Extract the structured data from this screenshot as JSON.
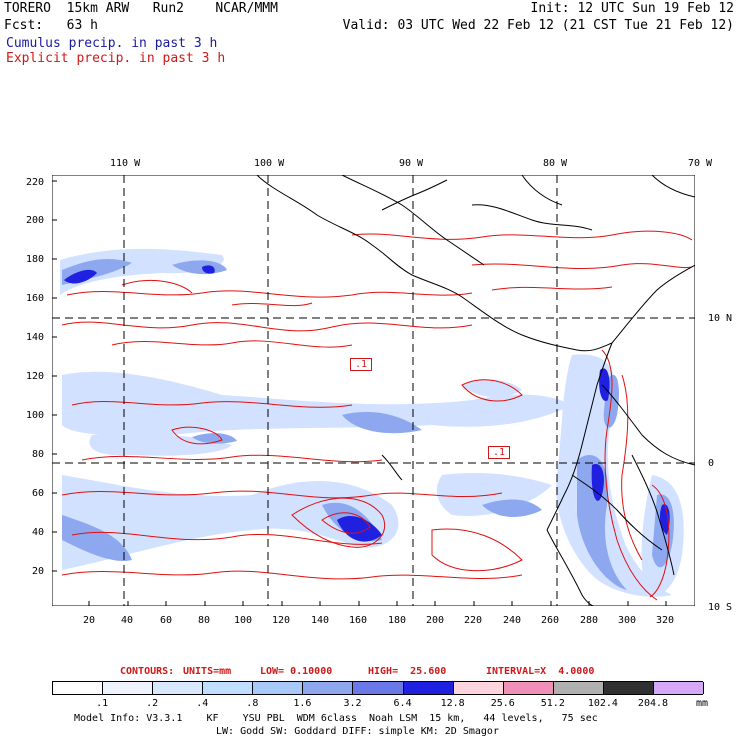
{
  "header": {
    "line1_left": "TORERO  15km ARW   Run2    NCAR/MMM",
    "line1_right": "Init: 12 UTC Sun 19 Feb 12",
    "line2_left": "Fcst:   63 h",
    "line2_right": "Valid: 03 UTC Wed 22 Feb 12 (21 CST Tue 21 Feb 12)",
    "cumulus": "Cumulus precip. in past 3 h",
    "explicit": "Explicit precip. in past 3 h"
  },
  "map": {
    "top_lon_labels": [
      "110 W",
      "100 W",
      "90 W",
      "80 W",
      "70 W"
    ],
    "right_lat_labels": [
      "10 N",
      "0",
      "10 S"
    ],
    "left_y_labels": [
      "220",
      "200",
      "180",
      "160",
      "140",
      "120",
      "100",
      "80",
      "60",
      "40",
      "20"
    ],
    "bottom_x_labels": [
      "20",
      "40",
      "60",
      "80",
      "100",
      "120",
      "140",
      "160",
      "180",
      "200",
      "220",
      "240",
      "260",
      "280",
      "300",
      "320"
    ],
    "contour_box_labels": [
      ".1",
      ".1"
    ],
    "colors": {
      "coast": "#000000",
      "contour": "#e01010",
      "precip_light": "#cfe0ff",
      "precip_mid": "#8ea8f0",
      "precip_heavy": "#2020e0"
    }
  },
  "contours_info": {
    "label": "CONTOURS:",
    "units": "UNITS=mm",
    "low": "LOW= 0.10000",
    "high": "HIGH=  25.600",
    "interval": "INTERVAL=X  4.0000"
  },
  "legend": {
    "values": [
      ".1",
      ".2",
      ".4",
      ".8",
      "1.6",
      "3.2",
      "6.4",
      "12.8",
      "25.6",
      "51.2",
      "102.4",
      "204.8"
    ],
    "unit": "mm",
    "colors": [
      "#ffffff",
      "#eef3ff",
      "#d8e8ff",
      "#c0deff",
      "#a8c8f8",
      "#8ea8f0",
      "#6a78e8",
      "#2020e0",
      "#ffd4dc",
      "#f090b8",
      "#b0b0b0",
      "#303030",
      "#d8a8f8"
    ]
  },
  "footer": {
    "line1": "Model Info: V3.3.1    KF    YSU PBL  WDM 6class  Noah LSM  15 km,   44 levels,   75 sec",
    "line2": "LW: Godd SW: Goddard DIFF: simple KM: 2D Smagor"
  }
}
